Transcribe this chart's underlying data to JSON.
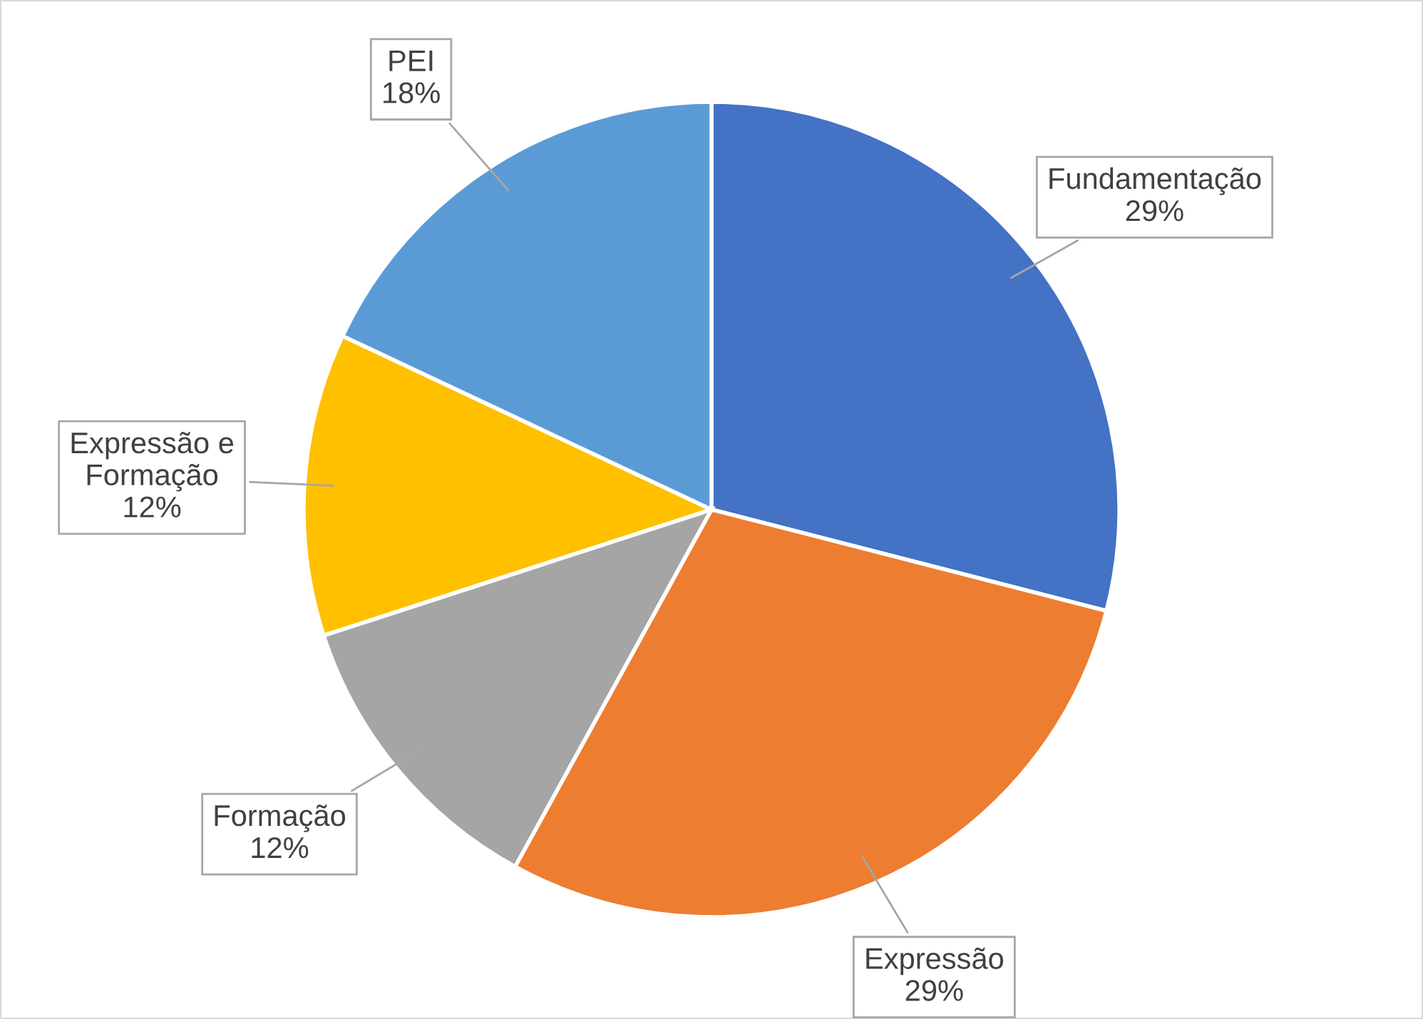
{
  "chart_data": {
    "type": "pie",
    "categories": [
      "Fundamentação",
      "Expressão",
      "Formação",
      "Expressão e Formação",
      "PEI"
    ],
    "values": [
      29,
      29,
      12,
      12,
      18
    ],
    "colors": [
      "#4472c4",
      "#ed7d31",
      "#a5a5a5",
      "#ffc000",
      "#5b9bd5"
    ],
    "value_labels": [
      "29%",
      "29%",
      "12%",
      "12%",
      "18%"
    ],
    "legend": false
  }
}
